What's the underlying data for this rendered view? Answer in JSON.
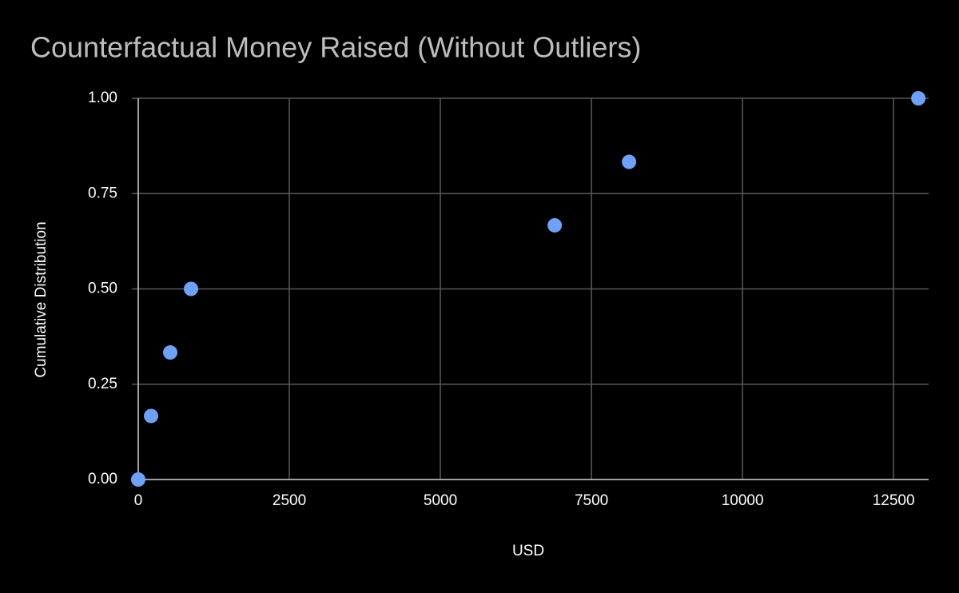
{
  "chart_data": {
    "type": "scatter",
    "title": "Counterfactual Money Raised (Without Outliers)",
    "x_label": "USD",
    "y_label": "Cumulative Distribution",
    "series": [
      {
        "color": "#6fa1f8",
        "x": [
          0,
          212,
          529,
          873,
          6892,
          8122,
          12910
        ],
        "values": [
          0,
          0.1667,
          0.3333,
          0.5,
          0.6667,
          0.8333,
          1
        ]
      }
    ],
    "xlim": [
      0,
      13080
    ],
    "xticks": [
      0,
      2500,
      5000,
      7500,
      10000,
      12500
    ],
    "ylim": [
      0,
      1
    ],
    "yticks": [
      {
        "value": 0,
        "label": "0.00"
      },
      {
        "value": 0.25,
        "label": "0.25"
      },
      {
        "value": 0.5,
        "label": "0.50"
      },
      {
        "value": 0.75,
        "label": "0.75"
      },
      {
        "value": 1,
        "label": "1.00"
      }
    ],
    "grid": true
  }
}
